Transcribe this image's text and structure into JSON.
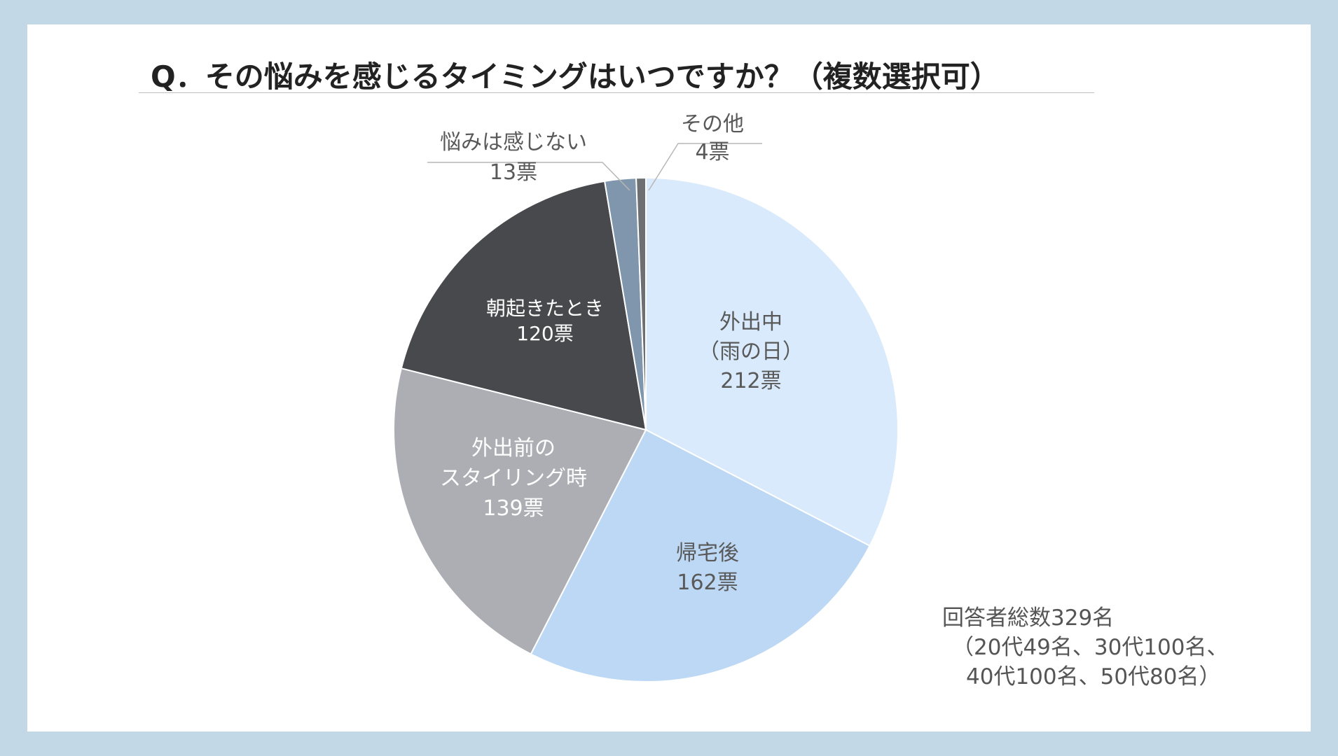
{
  "title": "Q．その悩みを感じるタイミングはいつですか？（複数選択可）",
  "chart_data": {
    "type": "pie",
    "title": "Q．その悩みを感じるタイミングはいつですか？（複数選択可）",
    "unit": "票",
    "slices": [
      {
        "label": "外出中（雨の日）",
        "label_lines": [
          "外出中",
          "（雨の日）",
          "212票"
        ],
        "value": 212,
        "color": "#d8eafb"
      },
      {
        "label": "帰宅後",
        "label_lines": [
          "帰宅後",
          "162票"
        ],
        "value": 162,
        "color": "#bdd8f4"
      },
      {
        "label": "外出前のスタイリング時",
        "label_lines": [
          "外出前の",
          "スタイリング時",
          "139票"
        ],
        "value": 139,
        "color": "#adaeb3"
      },
      {
        "label": "朝起きたとき",
        "label_lines": [
          "朝起きたとき",
          "120票"
        ],
        "value": 120,
        "color": "#48494c"
      },
      {
        "label": "悩みは感じない",
        "label_lines": [
          "悩みは感じない",
          "13票"
        ],
        "value": 13,
        "color": "#7f96ad"
      },
      {
        "label": "その他",
        "label_lines": [
          "その他",
          "4票"
        ],
        "value": 4,
        "color": "#6d6f73"
      }
    ]
  },
  "note": {
    "line1": "回答者総数329名",
    "line2": "（20代49名、30代100名、",
    "line3": "40代100名、50代80名）"
  }
}
